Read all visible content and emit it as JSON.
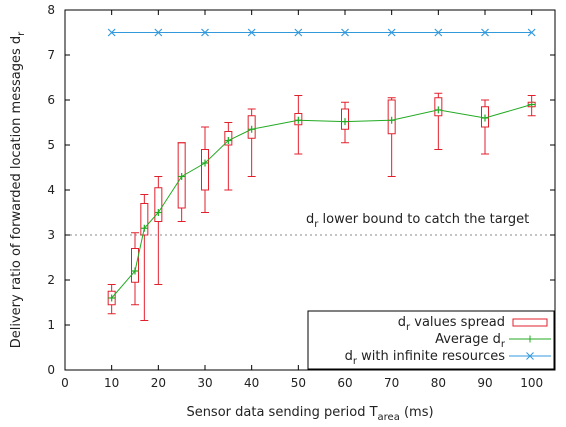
{
  "chart_data": {
    "type": "line",
    "xlabel": "Sensor data sending period T",
    "xlabel_sub": "area",
    "xlabel_unit": " (ms)",
    "ylabel": "Delivery ratio of forwarded location messages d",
    "ylabel_sub": "r",
    "xlim": [
      0,
      105
    ],
    "ylim": [
      0,
      8
    ],
    "x_ticks": [
      0,
      10,
      20,
      30,
      40,
      50,
      60,
      70,
      80,
      90,
      100
    ],
    "y_ticks": [
      0,
      1,
      2,
      3,
      4,
      5,
      6,
      7,
      8
    ],
    "grid": false,
    "legend_position": "bottom-right",
    "threshold": {
      "y": 3,
      "label_main": "d",
      "label_sub": "r",
      "label_rest": " lower bound to catch the target"
    },
    "series": [
      {
        "name_main": "d",
        "name_sub": "r",
        "name_rest": " values spread",
        "kind": "box",
        "color": "#e2202c",
        "points": [
          {
            "x": 10,
            "min": 1.25,
            "q1": 1.45,
            "q3": 1.75,
            "max": 1.9
          },
          {
            "x": 15,
            "min": 1.45,
            "q1": 1.95,
            "q3": 2.7,
            "max": 3.05
          },
          {
            "x": 17,
            "min": 1.1,
            "q1": 3.0,
            "q3": 3.7,
            "max": 3.9
          },
          {
            "x": 20,
            "min": 1.9,
            "q1": 3.3,
            "q3": 4.05,
            "max": 4.3
          },
          {
            "x": 25,
            "min": 3.3,
            "q1": 3.6,
            "q3": 5.05,
            "max": 5.05
          },
          {
            "x": 30,
            "min": 3.5,
            "q1": 4.0,
            "q3": 4.9,
            "max": 5.4
          },
          {
            "x": 35,
            "min": 4.0,
            "q1": 5.0,
            "q3": 5.3,
            "max": 5.5
          },
          {
            "x": 40,
            "min": 4.3,
            "q1": 5.15,
            "q3": 5.65,
            "max": 5.8
          },
          {
            "x": 50,
            "min": 4.8,
            "q1": 5.45,
            "q3": 5.7,
            "max": 6.1
          },
          {
            "x": 60,
            "min": 5.05,
            "q1": 5.35,
            "q3": 5.8,
            "max": 5.95
          },
          {
            "x": 70,
            "min": 4.3,
            "q1": 5.25,
            "q3": 6.0,
            "max": 6.05
          },
          {
            "x": 80,
            "min": 4.9,
            "q1": 5.65,
            "q3": 6.05,
            "max": 6.15
          },
          {
            "x": 90,
            "min": 4.8,
            "q1": 5.4,
            "q3": 5.85,
            "max": 6.0
          },
          {
            "x": 100,
            "min": 5.65,
            "q1": 5.85,
            "q3": 5.95,
            "max": 6.1
          }
        ]
      },
      {
        "name_main": "Average d",
        "name_sub": "r",
        "name_rest": "",
        "kind": "line",
        "color": "#22aa22",
        "x": [
          10,
          15,
          17,
          20,
          25,
          30,
          35,
          40,
          50,
          60,
          70,
          80,
          90,
          100
        ],
        "values": [
          1.6,
          2.2,
          3.15,
          3.5,
          4.3,
          4.6,
          5.1,
          5.35,
          5.55,
          5.52,
          5.55,
          5.78,
          5.6,
          5.9
        ]
      },
      {
        "name_main": "d",
        "name_sub": "r",
        "name_rest": " with infinite resources",
        "kind": "line",
        "color": "#3399dd",
        "x": [
          10,
          20,
          30,
          40,
          50,
          60,
          70,
          80,
          90,
          100
        ],
        "values": [
          7.5,
          7.5,
          7.5,
          7.5,
          7.5,
          7.5,
          7.5,
          7.5,
          7.5,
          7.5
        ]
      }
    ]
  }
}
